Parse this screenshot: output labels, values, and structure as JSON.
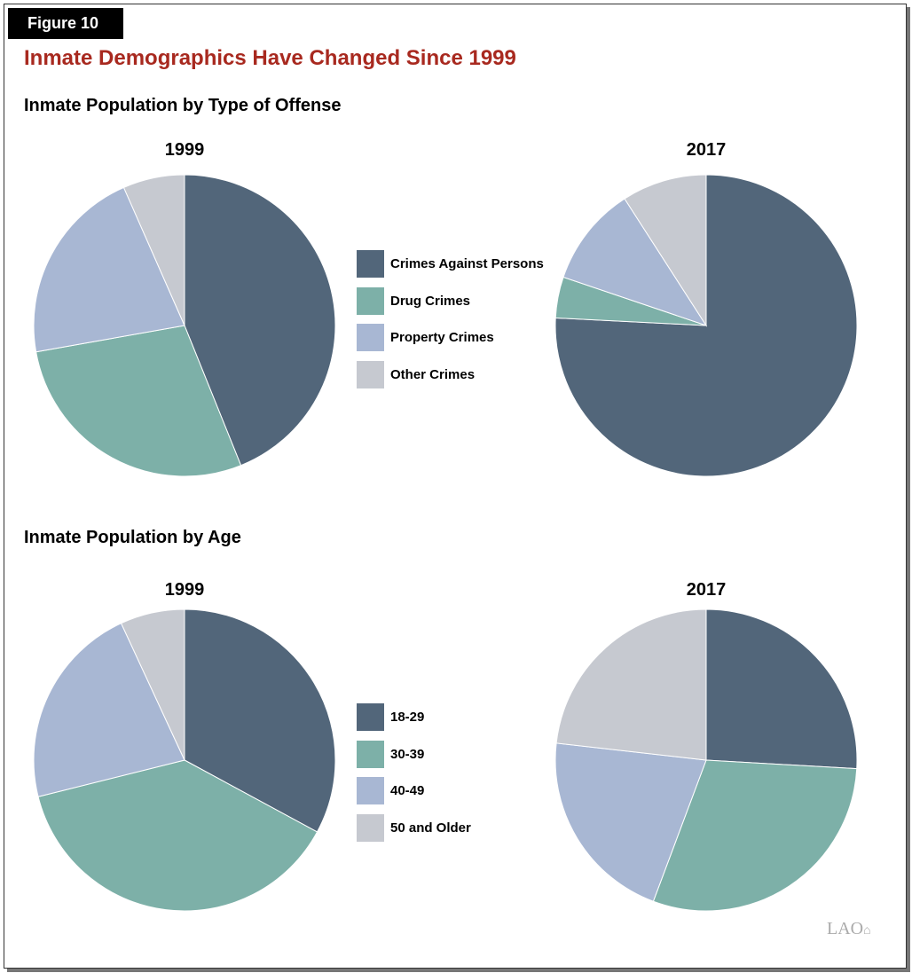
{
  "figure_label": "Figure 10",
  "title": "Inmate Demographics Have Changed Since 1999",
  "logo": "LAO",
  "chart_data": [
    {
      "type": "pie",
      "section_title": "Inmate Population by Type of Offense",
      "title": "1999",
      "categories": [
        "Crimes Against Persons",
        "Drug Crimes",
        "Property Crimes",
        "Other Crimes"
      ],
      "values": [
        43.9,
        28.3,
        21.2,
        6.6
      ],
      "colors": [
        "#52667a",
        "#7db0a8",
        "#a8b7d3",
        "#c6c9d0"
      ],
      "legend": "right"
    },
    {
      "type": "pie",
      "title": "2017",
      "categories": [
        "Crimes Against Persons",
        "Drug Crimes",
        "Property Crimes",
        "Other Crimes"
      ],
      "values": [
        75.8,
        4.4,
        10.7,
        9.1
      ],
      "colors": [
        "#52667a",
        "#7db0a8",
        "#a8b7d3",
        "#c6c9d0"
      ]
    },
    {
      "type": "pie",
      "section_title": "Inmate Population by Age",
      "title": "1999",
      "categories": [
        "18-29",
        "30-39",
        "40-49",
        "50 and Older"
      ],
      "values": [
        32.9,
        38.2,
        22.0,
        6.9
      ],
      "colors": [
        "#52667a",
        "#7db0a8",
        "#a8b7d3",
        "#c6c9d0"
      ],
      "legend": "right"
    },
    {
      "type": "pie",
      "title": "2017",
      "categories": [
        "18-29",
        "30-39",
        "40-49",
        "50 and Older"
      ],
      "values": [
        25.9,
        29.8,
        21.1,
        23.2
      ],
      "colors": [
        "#52667a",
        "#7db0a8",
        "#a8b7d3",
        "#c6c9d0"
      ]
    }
  ]
}
